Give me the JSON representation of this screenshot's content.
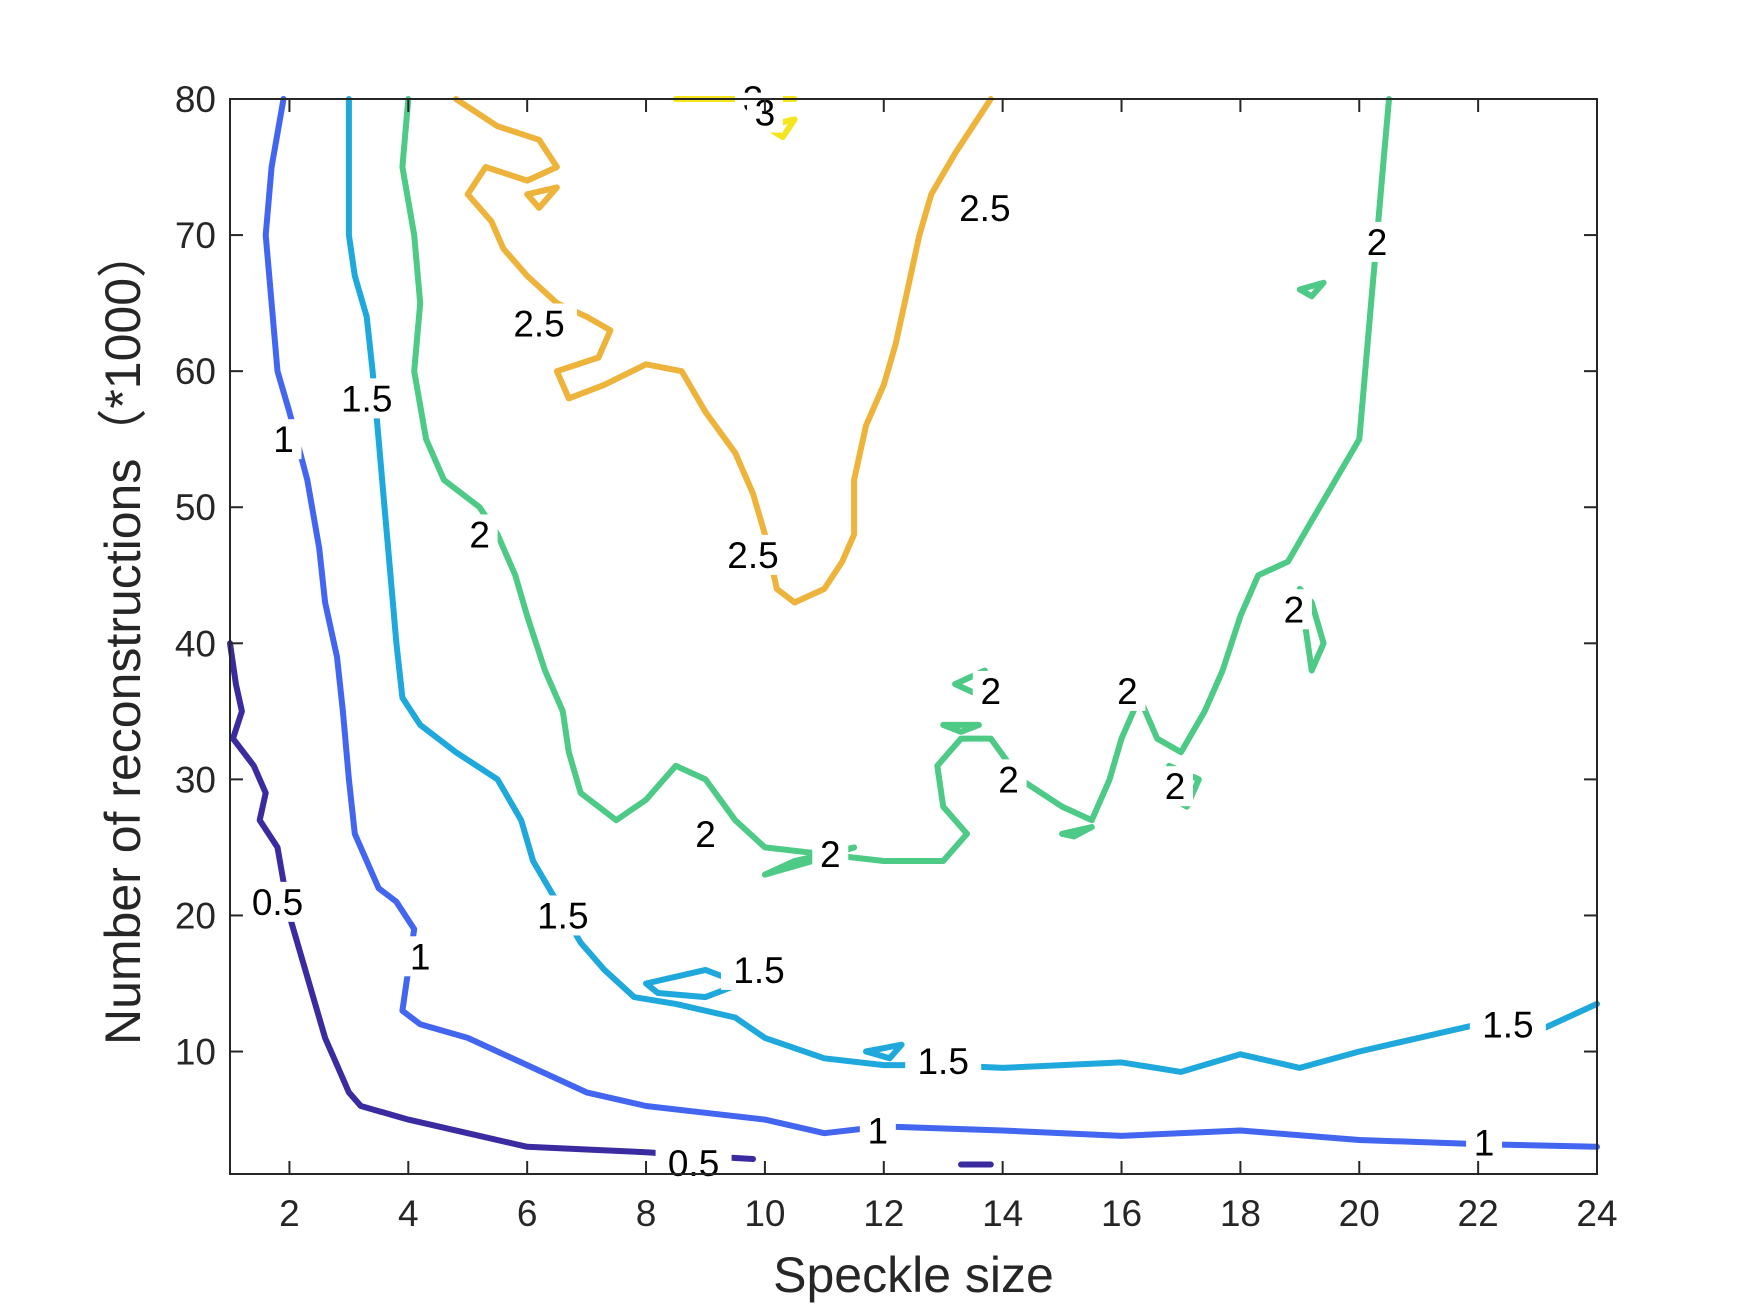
{
  "chart_data": {
    "type": "contour",
    "xlabel": "Speckle size",
    "ylabel": "Number of reconstructions（*1000）",
    "xlim": [
      1,
      24
    ],
    "ylim": [
      1,
      80
    ],
    "x_ticks": [
      2,
      4,
      6,
      8,
      10,
      12,
      14,
      16,
      18,
      20,
      22,
      24
    ],
    "y_ticks": [
      10,
      20,
      30,
      40,
      50,
      60,
      70,
      80
    ],
    "grid": false,
    "level_colors": {
      "0.5": "#3b2ba0",
      "1": "#4266f0",
      "1.5": "#1fa8dc",
      "2": "#4dca86",
      "2.5": "#edb33a",
      "3": "#f5e51c"
    },
    "contours": [
      {
        "level": 0.5,
        "points": [
          [
            1.0,
            40
          ],
          [
            1.1,
            37
          ],
          [
            1.2,
            35
          ],
          [
            1.05,
            33
          ],
          [
            1.4,
            31
          ],
          [
            1.6,
            29
          ],
          [
            1.5,
            27
          ],
          [
            1.8,
            25
          ],
          [
            2.0,
            20
          ],
          [
            2.2,
            17
          ],
          [
            2.4,
            14
          ],
          [
            2.6,
            11
          ],
          [
            2.8,
            9
          ],
          [
            3.0,
            7
          ],
          [
            3.2,
            6
          ],
          [
            4,
            5
          ],
          [
            5,
            4
          ],
          [
            6,
            3
          ],
          [
            7,
            2.8
          ],
          [
            8,
            2.6
          ],
          [
            9,
            2.3
          ],
          [
            9.8,
            2.1
          ]
        ]
      },
      {
        "level": 0.5,
        "points": [
          [
            13.3,
            1.7
          ],
          [
            13.8,
            1.7
          ]
        ]
      },
      {
        "level": 1,
        "points": [
          [
            1.9,
            80
          ],
          [
            1.7,
            75
          ],
          [
            1.6,
            70
          ],
          [
            1.7,
            65
          ],
          [
            1.8,
            60
          ],
          [
            2.0,
            57
          ],
          [
            2.3,
            52
          ],
          [
            2.5,
            47
          ],
          [
            2.6,
            43
          ],
          [
            2.8,
            39
          ],
          [
            2.9,
            35
          ],
          [
            3.0,
            30
          ],
          [
            3.1,
            26
          ],
          [
            3.3,
            24
          ],
          [
            3.5,
            22
          ],
          [
            3.8,
            21
          ],
          [
            4.1,
            19
          ],
          [
            4.0,
            16
          ],
          [
            3.9,
            13
          ],
          [
            4.2,
            12
          ],
          [
            5,
            11
          ],
          [
            6,
            9
          ],
          [
            7,
            7
          ],
          [
            8,
            6
          ],
          [
            9,
            5.5
          ],
          [
            10,
            5
          ],
          [
            11,
            4
          ],
          [
            12,
            4.5
          ],
          [
            14,
            4.2
          ],
          [
            16,
            3.8
          ],
          [
            18,
            4.2
          ],
          [
            20,
            3.5
          ],
          [
            22,
            3.2
          ],
          [
            24,
            3.0
          ]
        ]
      },
      {
        "level": 1.5,
        "points": [
          [
            3.0,
            80
          ],
          [
            3.0,
            75
          ],
          [
            3.0,
            70
          ],
          [
            3.1,
            67
          ],
          [
            3.3,
            64
          ],
          [
            3.4,
            60
          ],
          [
            3.5,
            55
          ],
          [
            3.6,
            50
          ],
          [
            3.7,
            45
          ],
          [
            3.8,
            40
          ],
          [
            3.9,
            36
          ],
          [
            4.2,
            34
          ],
          [
            4.8,
            32
          ],
          [
            5.5,
            30
          ],
          [
            5.9,
            27
          ],
          [
            6.1,
            24
          ],
          [
            6.5,
            21
          ],
          [
            6.9,
            18
          ],
          [
            7.3,
            16
          ],
          [
            7.8,
            14
          ],
          [
            8.5,
            13.5
          ],
          [
            9.5,
            12.5
          ],
          [
            10,
            11
          ],
          [
            11,
            9.5
          ],
          [
            12,
            9
          ],
          [
            13,
            9
          ],
          [
            14,
            8.8
          ],
          [
            16,
            9.2
          ],
          [
            17,
            8.5
          ],
          [
            18,
            9.8
          ],
          [
            19,
            8.8
          ],
          [
            20,
            10
          ],
          [
            21,
            11
          ],
          [
            22,
            12
          ],
          [
            23,
            11.5
          ],
          [
            24,
            13.5
          ]
        ]
      },
      {
        "level": 1.5,
        "points": [
          [
            8.0,
            15
          ],
          [
            9.0,
            16
          ],
          [
            9.6,
            15
          ],
          [
            9.0,
            14
          ],
          [
            8.2,
            14.3
          ],
          [
            8.0,
            15
          ]
        ]
      },
      {
        "level": 1.5,
        "points": [
          [
            11.7,
            10
          ],
          [
            12.3,
            10.5
          ],
          [
            12.1,
            9.5
          ],
          [
            11.7,
            10
          ]
        ]
      },
      {
        "level": 2,
        "points": [
          [
            4.0,
            80
          ],
          [
            3.9,
            75
          ],
          [
            4.1,
            70
          ],
          [
            4.2,
            65
          ],
          [
            4.1,
            60
          ],
          [
            4.3,
            55
          ],
          [
            4.6,
            52
          ],
          [
            5.2,
            50
          ],
          [
            5.5,
            48
          ],
          [
            5.8,
            45
          ],
          [
            6.0,
            42
          ],
          [
            6.3,
            38
          ],
          [
            6.6,
            35
          ],
          [
            6.7,
            32
          ],
          [
            6.9,
            29
          ],
          [
            7.5,
            27
          ],
          [
            8.0,
            28.5
          ],
          [
            8.5,
            31
          ],
          [
            9.0,
            30
          ],
          [
            9.5,
            27
          ],
          [
            10,
            25
          ],
          [
            11,
            24.5
          ],
          [
            12,
            24
          ],
          [
            13,
            24
          ],
          [
            13.4,
            26
          ],
          [
            13.0,
            28
          ],
          [
            12.9,
            31
          ],
          [
            13.3,
            33
          ],
          [
            13.8,
            33
          ],
          [
            14.3,
            30
          ],
          [
            15,
            28
          ],
          [
            15.5,
            27
          ],
          [
            15.8,
            30
          ],
          [
            16.0,
            33
          ],
          [
            16.3,
            36
          ],
          [
            16.6,
            33
          ],
          [
            17.0,
            32
          ],
          [
            17.4,
            35
          ],
          [
            17.7,
            38
          ],
          [
            18.0,
            42
          ],
          [
            18.3,
            45
          ],
          [
            18.8,
            46
          ],
          [
            19.2,
            49
          ],
          [
            19.6,
            52
          ],
          [
            20,
            55
          ],
          [
            20.1,
            60
          ],
          [
            20.2,
            65
          ],
          [
            20.3,
            70
          ],
          [
            20.4,
            75
          ],
          [
            20.5,
            80
          ]
        ]
      },
      {
        "level": 2,
        "points": [
          [
            10.0,
            23
          ],
          [
            10.5,
            24
          ],
          [
            11.5,
            25
          ],
          [
            10.8,
            24
          ],
          [
            10.0,
            23
          ]
        ]
      },
      {
        "level": 2,
        "points": [
          [
            13.2,
            37
          ],
          [
            13.7,
            38
          ],
          [
            13.7,
            36
          ],
          [
            13.2,
            37
          ]
        ]
      },
      {
        "level": 2,
        "points": [
          [
            13.0,
            34
          ],
          [
            13.6,
            34
          ],
          [
            13.3,
            33.5
          ],
          [
            13.0,
            34
          ]
        ]
      },
      {
        "level": 2,
        "points": [
          [
            15.0,
            26
          ],
          [
            15.5,
            26.5
          ],
          [
            15.2,
            25.8
          ],
          [
            15.0,
            26
          ]
        ]
      },
      {
        "level": 2,
        "points": [
          [
            17.1,
            28
          ],
          [
            17.3,
            30
          ],
          [
            16.8,
            31
          ],
          [
            16.9,
            28.5
          ],
          [
            17.1,
            28
          ]
        ]
      },
      {
        "level": 2,
        "points": [
          [
            19.0,
            44
          ],
          [
            19.1,
            41
          ],
          [
            19.2,
            38
          ],
          [
            19.4,
            40
          ],
          [
            19.2,
            43
          ],
          [
            19.0,
            44
          ]
        ]
      },
      {
        "level": 2,
        "points": [
          [
            19.0,
            66
          ],
          [
            19.4,
            66.5
          ],
          [
            19.2,
            65.5
          ],
          [
            19.0,
            66
          ]
        ]
      },
      {
        "level": 2.5,
        "points": [
          [
            4.8,
            80
          ],
          [
            5.5,
            78
          ],
          [
            6.2,
            77
          ],
          [
            6.5,
            75
          ],
          [
            6.0,
            74
          ],
          [
            5.3,
            75
          ],
          [
            5.0,
            73
          ],
          [
            5.4,
            71
          ],
          [
            5.6,
            69
          ],
          [
            6.0,
            67
          ],
          [
            6.5,
            65
          ],
          [
            7.0,
            64
          ],
          [
            7.4,
            63
          ],
          [
            7.2,
            61
          ],
          [
            6.5,
            60
          ],
          [
            6.7,
            58
          ],
          [
            7.3,
            59
          ],
          [
            8.0,
            60.5
          ],
          [
            8.6,
            60
          ],
          [
            9.0,
            57
          ],
          [
            9.5,
            54
          ],
          [
            9.8,
            51
          ],
          [
            10.0,
            48
          ],
          [
            10.2,
            44
          ],
          [
            10.5,
            43
          ],
          [
            11.0,
            44
          ],
          [
            11.3,
            46
          ],
          [
            11.5,
            48
          ],
          [
            11.5,
            52
          ],
          [
            11.7,
            56
          ],
          [
            12.0,
            59
          ],
          [
            12.2,
            62
          ],
          [
            12.4,
            66
          ],
          [
            12.6,
            70
          ],
          [
            12.8,
            73
          ],
          [
            13.2,
            76
          ],
          [
            13.5,
            78
          ],
          [
            13.8,
            80
          ]
        ]
      },
      {
        "level": 2.5,
        "points": [
          [
            6.0,
            73
          ],
          [
            6.5,
            73.5
          ],
          [
            6.2,
            72
          ],
          [
            6.0,
            73
          ]
        ]
      },
      {
        "level": 3,
        "points": [
          [
            8.5,
            80
          ],
          [
            10.5,
            80
          ]
        ]
      },
      {
        "level": 3,
        "points": [
          [
            10.0,
            78
          ],
          [
            10.5,
            78.5
          ],
          [
            10.3,
            77.2
          ],
          [
            10.0,
            78
          ]
        ]
      }
    ],
    "contour_labels": [
      {
        "text": "0.5",
        "x": 1.8,
        "y": 21
      },
      {
        "text": "0.5",
        "x": 8.8,
        "y": 1.8
      },
      {
        "text": "1",
        "x": 1.9,
        "y": 55
      },
      {
        "text": "1",
        "x": 4.2,
        "y": 17
      },
      {
        "text": "1",
        "x": 11.9,
        "y": 4.2
      },
      {
        "text": "1",
        "x": 22.1,
        "y": 3.3
      },
      {
        "text": "1.5",
        "x": 3.3,
        "y": 58
      },
      {
        "text": "1.5",
        "x": 6.6,
        "y": 20
      },
      {
        "text": "1.5",
        "x": 9.9,
        "y": 16
      },
      {
        "text": "1.5",
        "x": 13.0,
        "y": 9.3
      },
      {
        "text": "1.5",
        "x": 22.5,
        "y": 12
      },
      {
        "text": "2",
        "x": 5.2,
        "y": 48
      },
      {
        "text": "2",
        "x": 9.0,
        "y": 26
      },
      {
        "text": "2",
        "x": 11.1,
        "y": 24.5
      },
      {
        "text": "2",
        "x": 13.8,
        "y": 36.5
      },
      {
        "text": "2",
        "x": 14.1,
        "y": 30
      },
      {
        "text": "2",
        "x": 16.1,
        "y": 36.5
      },
      {
        "text": "2",
        "x": 16.9,
        "y": 29.5
      },
      {
        "text": "2",
        "x": 18.9,
        "y": 42.5
      },
      {
        "text": "2",
        "x": 20.3,
        "y": 69.5
      },
      {
        "text": "2.5",
        "x": 6.2,
        "y": 63.5
      },
      {
        "text": "2.5",
        "x": 9.8,
        "y": 46.5
      },
      {
        "text": "2.5",
        "x": 13.7,
        "y": 72
      },
      {
        "text": "3",
        "x": 9.8,
        "y": 80
      },
      {
        "text": "3",
        "x": 10.0,
        "y": 79
      }
    ]
  }
}
